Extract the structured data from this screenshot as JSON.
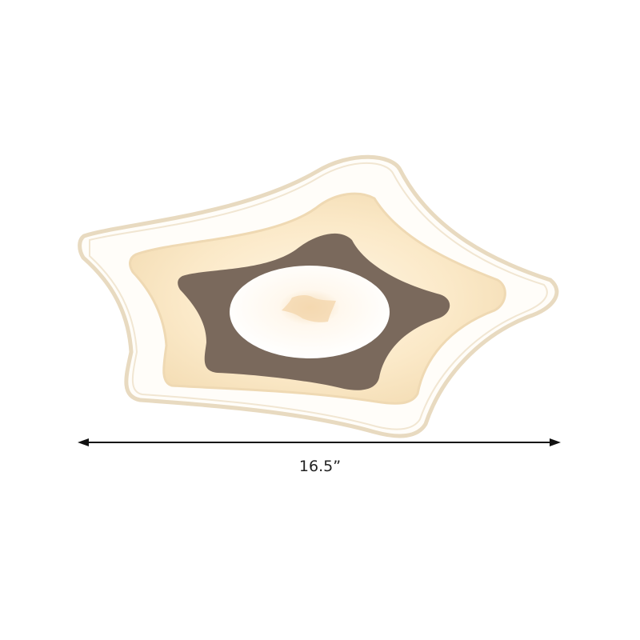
{
  "product": {
    "dimension_label": "16.5”",
    "colors": {
      "acrylic_rim": "#e9dcc0",
      "diffuser": "#fbeacb",
      "brown_panel": "#7a695c",
      "center_light": "#ffffff"
    }
  }
}
